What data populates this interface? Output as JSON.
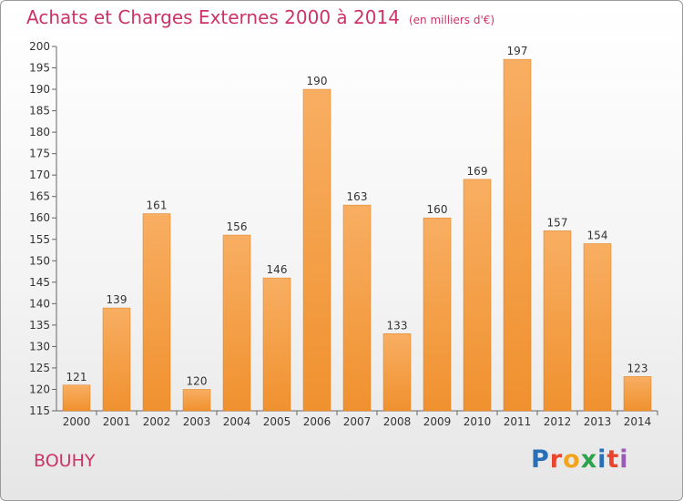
{
  "header": {
    "title": "Achats et Charges Externes 2000 à 2014",
    "unit": "(en milliers d'€)"
  },
  "footer": {
    "town": "BOUHY",
    "logo": "Proxiti"
  },
  "colors": {
    "bar": "#f0912f",
    "bar_light": "#f8ae62",
    "title": "#cc3366"
  },
  "chart_data": {
    "type": "bar",
    "title": "Achats et Charges Externes 2000 à 2014",
    "subtitle": "(en milliers d'€)",
    "xlabel": "",
    "ylabel": "",
    "categories": [
      "2000",
      "2001",
      "2002",
      "2003",
      "2004",
      "2005",
      "2006",
      "2007",
      "2008",
      "2009",
      "2010",
      "2011",
      "2012",
      "2013",
      "2014"
    ],
    "values": [
      121,
      139,
      161,
      120,
      156,
      146,
      190,
      163,
      133,
      160,
      169,
      197,
      157,
      154,
      123
    ],
    "ylim": [
      115,
      200
    ],
    "ytick_step": 5,
    "grid": false
  }
}
